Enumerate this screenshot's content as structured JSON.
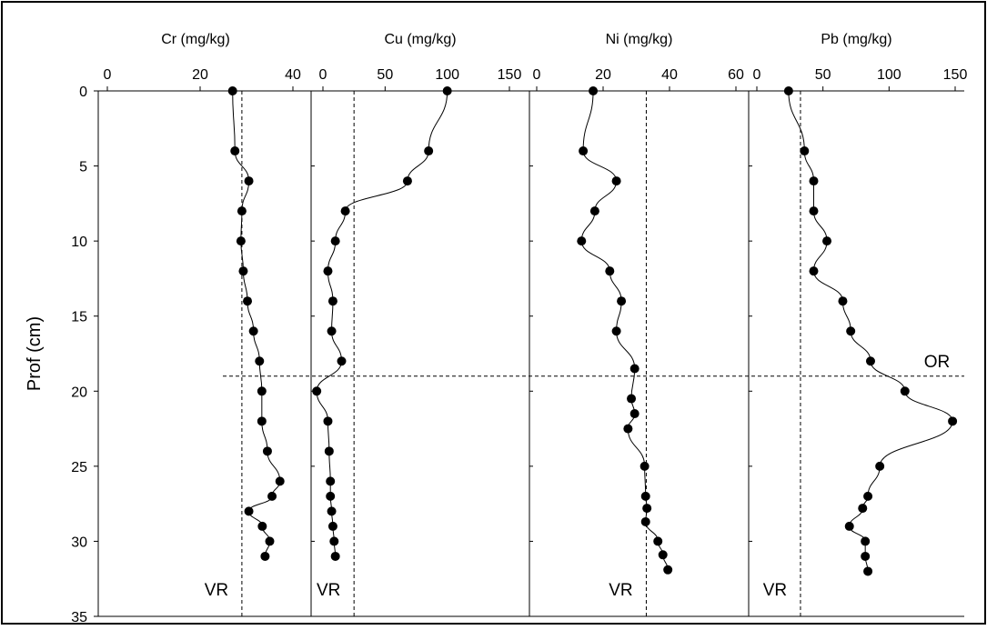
{
  "chart_data": {
    "type": "line",
    "ylabel": "Prof (cm)",
    "ylim": [
      0,
      35
    ],
    "y_ticks": [
      "0",
      "5",
      "10",
      "15",
      "20",
      "25",
      "30",
      "35"
    ],
    "reference_line": {
      "depth": 19,
      "label": "OR"
    },
    "panels": [
      {
        "title": "Cr (mg/kg)",
        "xlim": [
          0,
          40
        ],
        "x_ticks": [
          0,
          20,
          40
        ],
        "vr": {
          "value": 29,
          "label": "VR"
        },
        "values": [
          [
            27,
            0
          ],
          [
            27.5,
            4
          ],
          [
            30.5,
            6
          ],
          [
            29,
            8
          ],
          [
            28.8,
            10
          ],
          [
            29.3,
            12
          ],
          [
            30.2,
            14
          ],
          [
            31.5,
            16
          ],
          [
            32.8,
            18
          ],
          [
            33.3,
            20
          ],
          [
            33.3,
            22
          ],
          [
            34.5,
            24
          ],
          [
            37.2,
            26
          ],
          [
            35.5,
            27
          ],
          [
            30.5,
            28
          ],
          [
            33.4,
            29
          ],
          [
            35,
            30
          ],
          [
            34,
            31
          ]
        ]
      },
      {
        "title": "Cu (mg/kg)",
        "xlim": [
          0,
          150
        ],
        "x_ticks": [
          0,
          50,
          100,
          150
        ],
        "vr": {
          "value": 25,
          "label": "VR"
        },
        "values": [
          [
            100,
            0
          ],
          [
            85,
            4
          ],
          [
            68,
            6
          ],
          [
            18,
            8
          ],
          [
            10,
            10
          ],
          [
            4,
            12
          ],
          [
            8,
            14
          ],
          [
            7,
            16
          ],
          [
            15,
            18
          ],
          [
            -5,
            20
          ],
          [
            4,
            22
          ],
          [
            5,
            24
          ],
          [
            6,
            26
          ],
          [
            6,
            27
          ],
          [
            7,
            28
          ],
          [
            8,
            29
          ],
          [
            9,
            30
          ],
          [
            10,
            31
          ]
        ]
      },
      {
        "title": "Ni (mg/kg)",
        "xlim": [
          0,
          60
        ],
        "x_ticks": [
          0,
          20,
          40,
          60
        ],
        "vr": {
          "value": 33,
          "label": "VR"
        },
        "values": [
          [
            17,
            0
          ],
          [
            14,
            4
          ],
          [
            24,
            6
          ],
          [
            17.5,
            8
          ],
          [
            13.5,
            10
          ],
          [
            22,
            12
          ],
          [
            25.5,
            14
          ],
          [
            24,
            16
          ],
          [
            29.5,
            18.5
          ],
          [
            28.5,
            20.5
          ],
          [
            29.5,
            21.5
          ],
          [
            27.5,
            22.5
          ],
          [
            32.5,
            25
          ],
          [
            32.8,
            27
          ],
          [
            33.2,
            27.8
          ],
          [
            32.8,
            28.7
          ],
          [
            36.5,
            30
          ],
          [
            38,
            30.9
          ],
          [
            39.5,
            31.9
          ]
        ]
      },
      {
        "title": "Pb (mg/kg)",
        "xlim": [
          0,
          150
        ],
        "x_ticks": [
          0,
          50,
          100,
          150
        ],
        "vr": {
          "value": 33,
          "label": "VR"
        },
        "values": [
          [
            24,
            0
          ],
          [
            36,
            4
          ],
          [
            43,
            6
          ],
          [
            43,
            8
          ],
          [
            53,
            10
          ],
          [
            43,
            12
          ],
          [
            65,
            14
          ],
          [
            71,
            16
          ],
          [
            86,
            18
          ],
          [
            112,
            20
          ],
          [
            148,
            22
          ],
          [
            93,
            25
          ],
          [
            84,
            27
          ],
          [
            80,
            27.8
          ],
          [
            70,
            29
          ],
          [
            82,
            30
          ],
          [
            82,
            31
          ],
          [
            84,
            32
          ]
        ]
      }
    ]
  }
}
